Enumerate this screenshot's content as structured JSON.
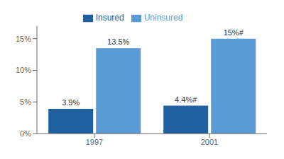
{
  "chart_data": {
    "type": "bar",
    "categories": [
      "1997",
      "2001"
    ],
    "series": [
      {
        "name": "Insured",
        "color": "#2060a0",
        "values": [
          3.9,
          4.4
        ],
        "value_labels": [
          "3.9%",
          "4.4%#"
        ]
      },
      {
        "name": "Uninsured",
        "color": "#5b9bd5",
        "values": [
          13.5,
          15.0
        ],
        "value_labels": [
          "13.5%",
          "15%#"
        ]
      }
    ],
    "ylim": [
      0,
      17
    ],
    "yticks": [
      {
        "value": 0,
        "label": "0%"
      },
      {
        "value": 5,
        "label": "5%"
      },
      {
        "value": 10,
        "label": "10%"
      },
      {
        "value": 15,
        "label": "15%"
      }
    ],
    "data_labels": true,
    "legend": "top",
    "grid": false
  }
}
